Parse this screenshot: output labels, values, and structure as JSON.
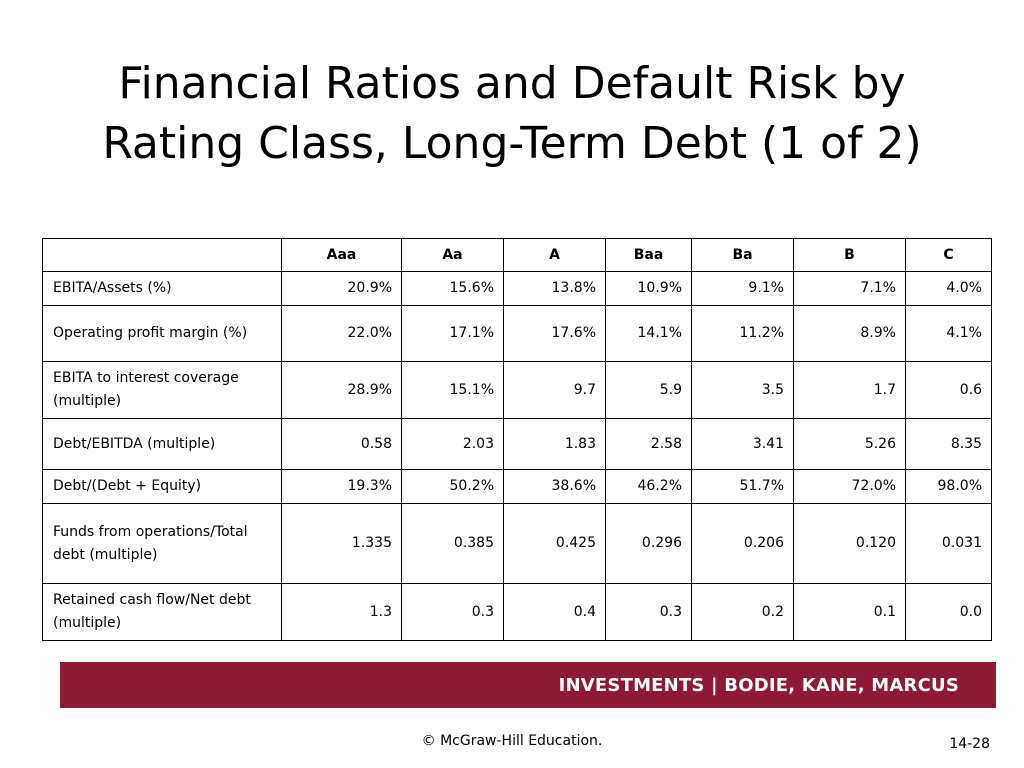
{
  "title": {
    "line1": "Financial Ratios and Default Risk by",
    "line2": "Rating Class, Long-Term Debt (1 of 2)"
  },
  "table": {
    "corner": "",
    "columns": [
      "Aaa",
      "Aa",
      "A",
      "Baa",
      "Ba",
      "B",
      "C"
    ],
    "rows": [
      {
        "label": "EBITA/Assets (%)",
        "values": [
          "20.9%",
          "15.6%",
          "13.8%",
          "10.9%",
          "9.1%",
          "7.1%",
          "4.0%"
        ]
      },
      {
        "label": "Operating profit margin (%)",
        "values": [
          "22.0%",
          "17.1%",
          "17.6%",
          "14.1%",
          "11.2%",
          "8.9%",
          "4.1%"
        ]
      },
      {
        "label": "EBITA to interest coverage (multiple)",
        "values": [
          "28.9%",
          "15.1%",
          "9.7",
          "5.9",
          "3.5",
          "1.7",
          "0.6"
        ]
      },
      {
        "label": "Debt/EBITDA (multiple)",
        "values": [
          "0.58",
          "2.03",
          "1.83",
          "2.58",
          "3.41",
          "5.26",
          "8.35"
        ]
      },
      {
        "label": "Debt/(Debt + Equity)",
        "values": [
          "19.3%",
          "50.2%",
          "38.6%",
          "46.2%",
          "51.7%",
          "72.0%",
          "98.0%"
        ]
      },
      {
        "label": "Funds from operations/Total debt (multiple)",
        "values": [
          "1.335",
          "0.385",
          "0.425",
          "0.296",
          "0.206",
          "0.120",
          "0.031"
        ]
      },
      {
        "label": "Retained cash flow/Net debt (multiple)",
        "values": [
          "1.3",
          "0.3",
          "0.4",
          "0.3",
          "0.2",
          "0.1",
          "0.0"
        ]
      }
    ]
  },
  "footer": {
    "banner_text": "INVESTMENTS | BODIE, KANE, MARCUS",
    "banner_color": "#8c1a36",
    "copyright": "© McGraw-Hill Education.",
    "page_number": "14-28"
  }
}
